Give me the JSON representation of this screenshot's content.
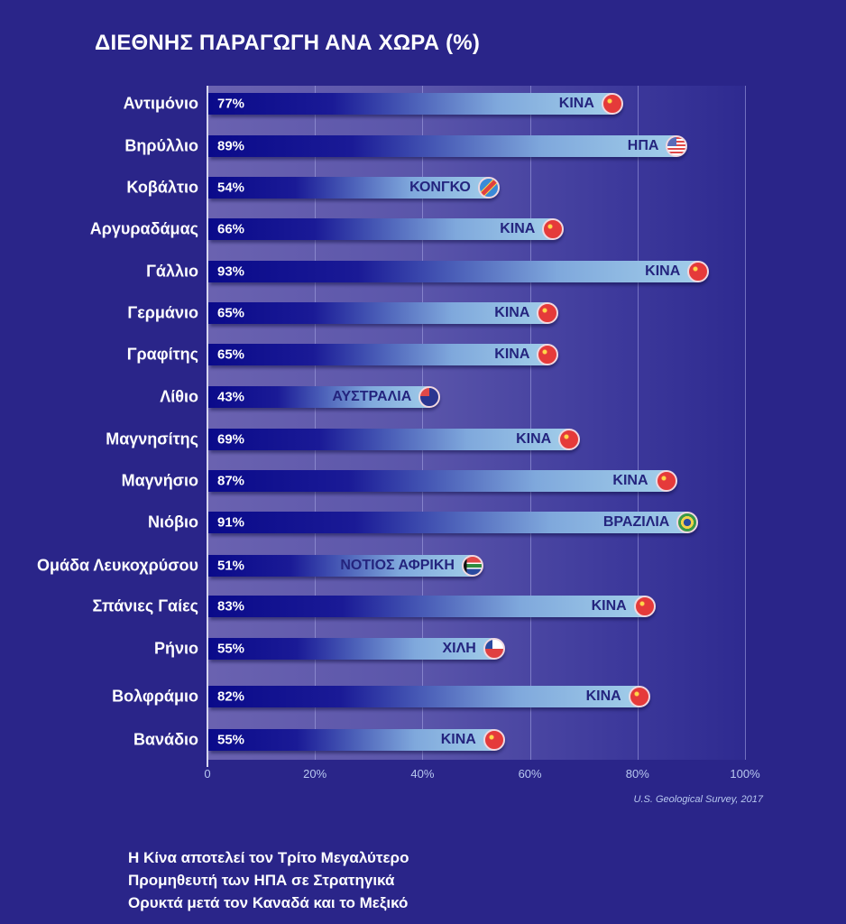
{
  "chart_data": {
    "type": "bar",
    "orientation": "horizontal",
    "title": "ΔΙΕΘΝΗΣ ΠΑΡΑΓΩΓΗ ΑΝΑ ΧΩΡΑ (%)",
    "xlabel": "",
    "ylabel": "",
    "xlim": [
      0,
      100
    ],
    "x_ticks": [
      "0",
      "20%",
      "40%",
      "60%",
      "80%",
      "100%"
    ],
    "grid": true,
    "categories": [
      "Αντιμόνιο",
      "Βηρύλλιο",
      "Κοβάλτιο",
      "Αργυραδάμας",
      "Γάλλιο",
      "Γερμάνιο",
      "Γραφίτης",
      "Λίθιο",
      "Μαγνησίτης",
      "Μαγνήσιο",
      "Νιόβιο",
      "Ομάδα Λευκοχρύσου",
      "Σπάνιες Γαίες",
      "Ρήνιο",
      "Βολφράμιο",
      "Βανάδιο"
    ],
    "values": [
      77,
      89,
      54,
      66,
      93,
      65,
      65,
      43,
      69,
      87,
      91,
      51,
      83,
      55,
      82,
      55
    ],
    "value_labels": [
      "77%",
      "89%",
      "54%",
      "66%",
      "93%",
      "65%",
      "65%",
      "43%",
      "69%",
      "87%",
      "91%",
      "51%",
      "83%",
      "55%",
      "82%",
      "55%"
    ],
    "countries": [
      "ΚΙΝΑ",
      "ΗΠΑ",
      "ΚΟΝΓΚΟ",
      "ΚΙΝΑ",
      "ΚΙΝΑ",
      "ΚΙΝΑ",
      "ΚΙΝΑ",
      "ΑΥΣΤΡΑΛΙΑ",
      "ΚΙΝΑ",
      "ΚΙΝΑ",
      "ΒΡΑΖΙΛΙΑ",
      "ΝΟΤΙΟΣ ΑΦΡΙΚΗ",
      "ΚΙΝΑ",
      "ΧΙΛΗ",
      "ΚΙΝΑ",
      "ΚΙΝΑ"
    ],
    "flag_icons": [
      "china-flag-icon",
      "usa-flag-icon",
      "congo-flag-icon",
      "china-flag-icon",
      "china-flag-icon",
      "china-flag-icon",
      "china-flag-icon",
      "australia-flag-icon",
      "china-flag-icon",
      "china-flag-icon",
      "brazil-flag-icon",
      "south-africa-flag-icon",
      "china-flag-icon",
      "chile-flag-icon",
      "china-flag-icon",
      "china-flag-icon"
    ],
    "source": "U.S. Geological Survey, 2017"
  },
  "note": {
    "lines": [
      "Η Κίνα αποτελεί τον Τρίτο Μεγαλύτερο",
      "Προμηθευτή των ΗΠΑ σε Στρατηγικά",
      "Ορυκτά μετά τον Καναδά και το Μεξικό"
    ]
  },
  "colors": {
    "background": "#2a2589",
    "bar_dark": "#0a0a8a",
    "bar_light": "#a4d0ea",
    "country_text": "#24247e"
  }
}
